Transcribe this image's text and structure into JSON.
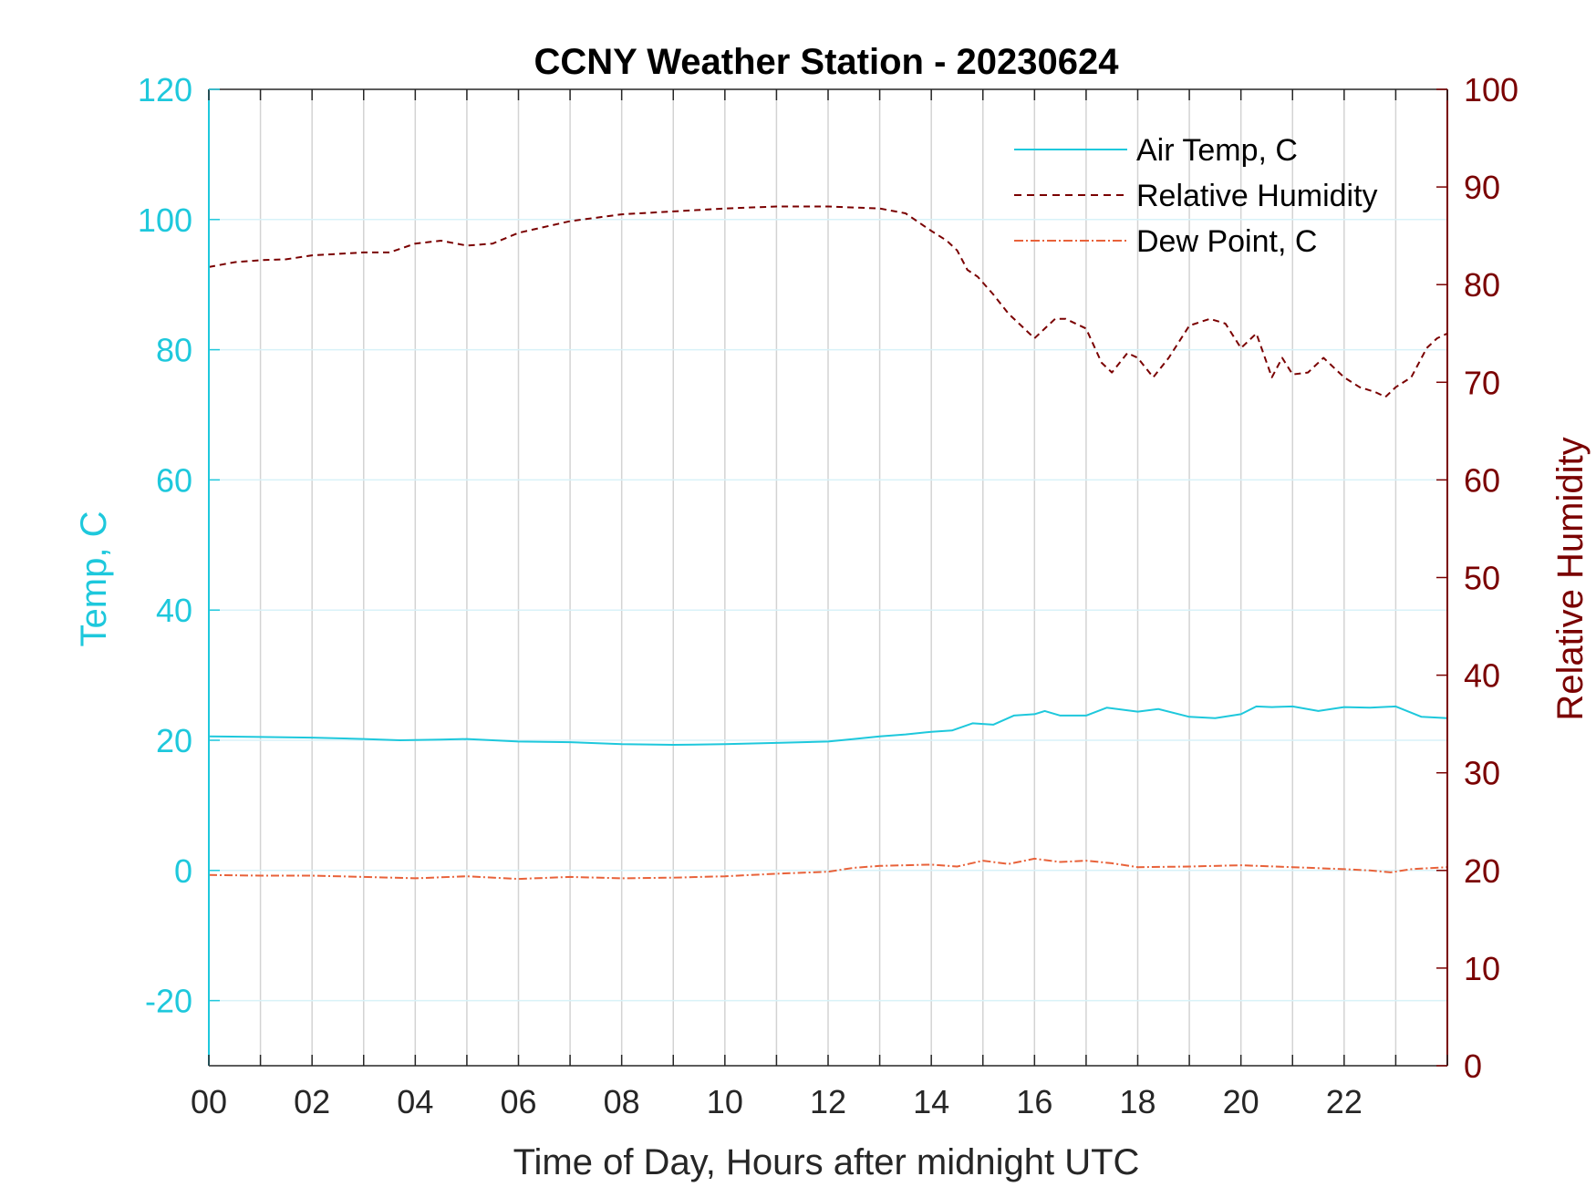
{
  "chart_data": {
    "type": "line",
    "title": "CCNY Weather Station - 20230624",
    "xlabel": "Time of Day, Hours after midnight UTC",
    "ylabel_left": "Temp, C",
    "ylabel_right": "Relative Humidity",
    "xlim": [
      0,
      24
    ],
    "ylim_left": [
      -30,
      120
    ],
    "ylim_right": [
      0,
      100
    ],
    "x_ticks": [
      0,
      2,
      4,
      6,
      8,
      10,
      12,
      14,
      16,
      18,
      20,
      22
    ],
    "x_tick_labels": [
      "00",
      "02",
      "04",
      "06",
      "08",
      "10",
      "12",
      "14",
      "16",
      "18",
      "20",
      "22"
    ],
    "y_left_ticks": [
      -20,
      0,
      20,
      40,
      60,
      80,
      100,
      120
    ],
    "y_right_ticks": [
      0,
      10,
      20,
      30,
      40,
      50,
      60,
      70,
      80,
      90,
      100
    ],
    "grid": "on",
    "legend_position": "top-right",
    "colors": {
      "temp": "#1ec8dc",
      "humidity": "#7a0000",
      "dewpoint": "#e8623a",
      "grid_v": "#d3d3d3",
      "grid_h": "#d8f2f8",
      "axis": "#262626"
    },
    "series": [
      {
        "name": "Air Temp, C",
        "axis": "left",
        "style": "solid",
        "x": [
          0,
          1,
          2,
          3,
          3.7,
          4.5,
          5,
          6,
          7,
          8,
          9,
          10,
          11,
          12,
          12.5,
          13,
          13.5,
          14,
          14.4,
          14.8,
          15.2,
          15.6,
          16,
          16.2,
          16.5,
          17,
          17.4,
          18,
          18.4,
          19,
          19.5,
          20,
          20.3,
          20.6,
          21,
          21.5,
          22,
          22.5,
          23,
          23.5,
          24
        ],
        "values": [
          20.6,
          20.5,
          20.4,
          20.2,
          20.0,
          20.1,
          20.2,
          19.8,
          19.7,
          19.4,
          19.3,
          19.4,
          19.6,
          19.8,
          20.2,
          20.6,
          20.9,
          21.3,
          21.5,
          22.6,
          22.4,
          23.8,
          24.0,
          24.5,
          23.8,
          23.8,
          25.0,
          24.4,
          24.8,
          23.6,
          23.4,
          24.0,
          25.2,
          25.1,
          25.2,
          24.5,
          25.1,
          25.0,
          25.2,
          23.6,
          23.4
        ]
      },
      {
        "name": "Relative Humidity",
        "axis": "right",
        "style": "dashed",
        "x": [
          0,
          0.5,
          1,
          1.5,
          2,
          3,
          3.5,
          4,
          4.5,
          5,
          5.5,
          6,
          7,
          8,
          9,
          10,
          11,
          12,
          12.5,
          13,
          13.5,
          14,
          14.3,
          14.5,
          14.7,
          14.9,
          15.2,
          15.5,
          15.7,
          16,
          16.2,
          16.4,
          16.6,
          17,
          17.3,
          17.5,
          17.8,
          18,
          18.3,
          18.6,
          19,
          19.4,
          19.7,
          20,
          20.3,
          20.6,
          20.8,
          21,
          21.3,
          21.6,
          22,
          22.3,
          22.6,
          22.8,
          23,
          23.3,
          23.6,
          23.8,
          24
        ],
        "values": [
          81.8,
          82.3,
          82.5,
          82.6,
          83.0,
          83.3,
          83.3,
          84.2,
          84.5,
          84.0,
          84.2,
          85.3,
          86.5,
          87.2,
          87.5,
          87.8,
          88.0,
          88.0,
          87.9,
          87.8,
          87.3,
          85.5,
          84.5,
          83.5,
          81.5,
          80.8,
          79.0,
          77.0,
          76.0,
          74.5,
          75.5,
          76.5,
          76.5,
          75.5,
          72.0,
          71.0,
          73.0,
          72.5,
          70.5,
          72.5,
          75.8,
          76.5,
          76.0,
          73.5,
          75.0,
          70.5,
          72.5,
          70.8,
          71.0,
          72.5,
          70.5,
          69.5,
          69.0,
          68.5,
          69.5,
          70.5,
          73.5,
          74.5,
          75.0
        ]
      },
      {
        "name": "Dew Point, C",
        "axis": "left",
        "style": "dash-dot",
        "x": [
          0,
          1,
          2,
          3,
          4,
          5,
          6,
          7,
          8,
          9,
          10,
          11,
          12,
          12.5,
          13,
          14,
          14.5,
          15,
          15.5,
          16,
          16.5,
          17,
          17.5,
          18,
          19,
          20,
          21,
          22,
          22.5,
          22.9,
          23.3,
          24
        ],
        "values": [
          -0.7,
          -0.8,
          -0.8,
          -1.0,
          -1.2,
          -0.9,
          -1.3,
          -1.0,
          -1.2,
          -1.1,
          -0.9,
          -0.5,
          -0.2,
          0.4,
          0.7,
          0.9,
          0.6,
          1.5,
          1.0,
          1.8,
          1.3,
          1.5,
          1.1,
          0.5,
          0.6,
          0.8,
          0.5,
          0.2,
          0.0,
          -0.3,
          0.2,
          0.5
        ]
      }
    ]
  }
}
